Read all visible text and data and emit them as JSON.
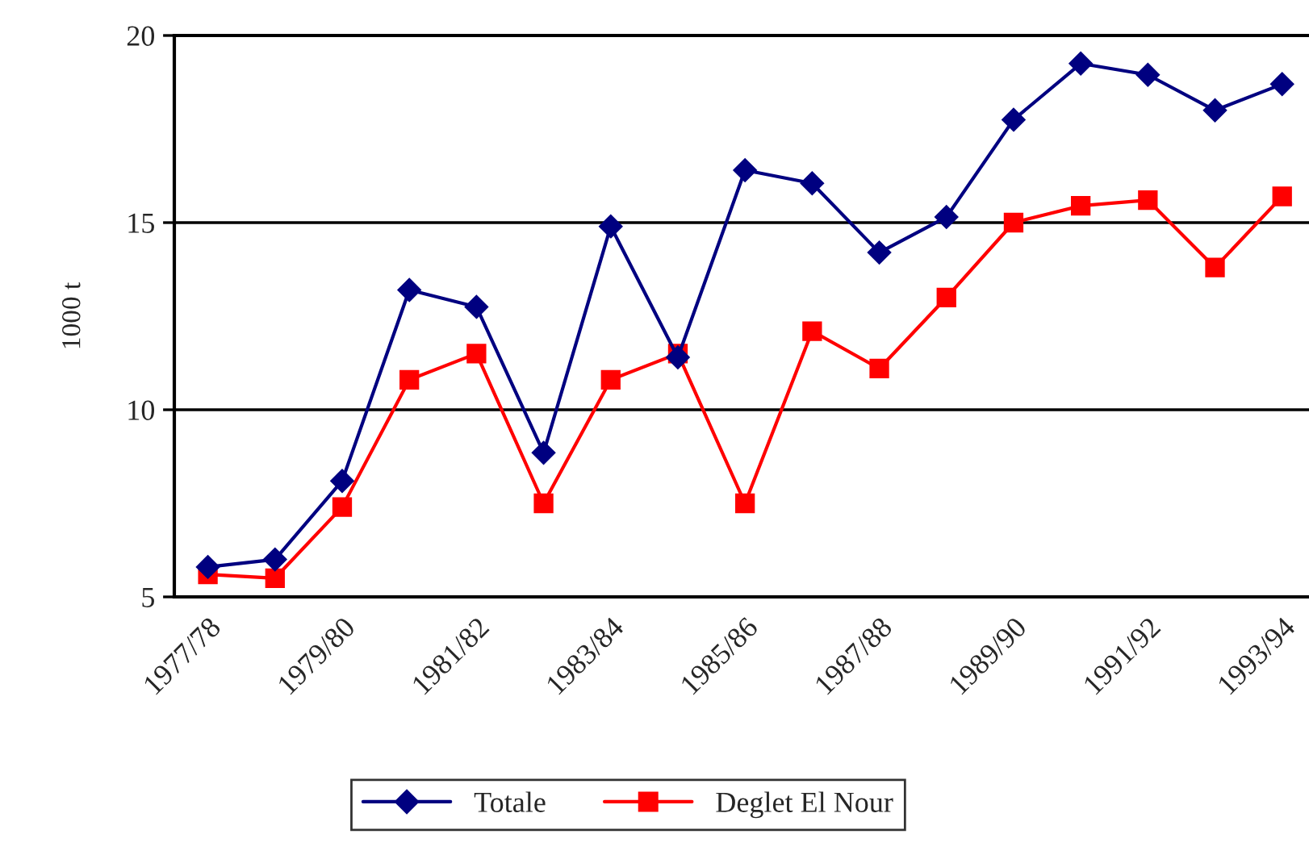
{
  "chart_data": {
    "type": "line",
    "ylabel": "1000 t",
    "categories": [
      "1977/78",
      null,
      "1979/80",
      null,
      "1981/82",
      null,
      "1983/84",
      null,
      "1985/86",
      null,
      "1987/88",
      null,
      "1989/90",
      null,
      "1991/92",
      null,
      "1993/94"
    ],
    "series": [
      {
        "name": "Totale",
        "color": "#000080",
        "marker": "diamond",
        "values": [
          5.8,
          6.0,
          8.1,
          13.2,
          12.75,
          8.85,
          14.9,
          11.4,
          16.4,
          16.05,
          14.2,
          15.15,
          17.75,
          19.25,
          18.95,
          18.0,
          18.7
        ]
      },
      {
        "name": "Deglet El Nour",
        "color": "#ff0000",
        "marker": "square",
        "values": [
          5.6,
          5.5,
          7.4,
          10.8,
          11.5,
          7.5,
          10.8,
          11.5,
          7.5,
          12.1,
          11.1,
          13.0,
          15.0,
          15.45,
          15.6,
          13.8,
          15.7
        ]
      }
    ],
    "ylim": [
      5,
      20
    ],
    "yticks": [
      5,
      10,
      15,
      20
    ],
    "grid": "y",
    "legend": "bottom",
    "line_style": "solid"
  }
}
